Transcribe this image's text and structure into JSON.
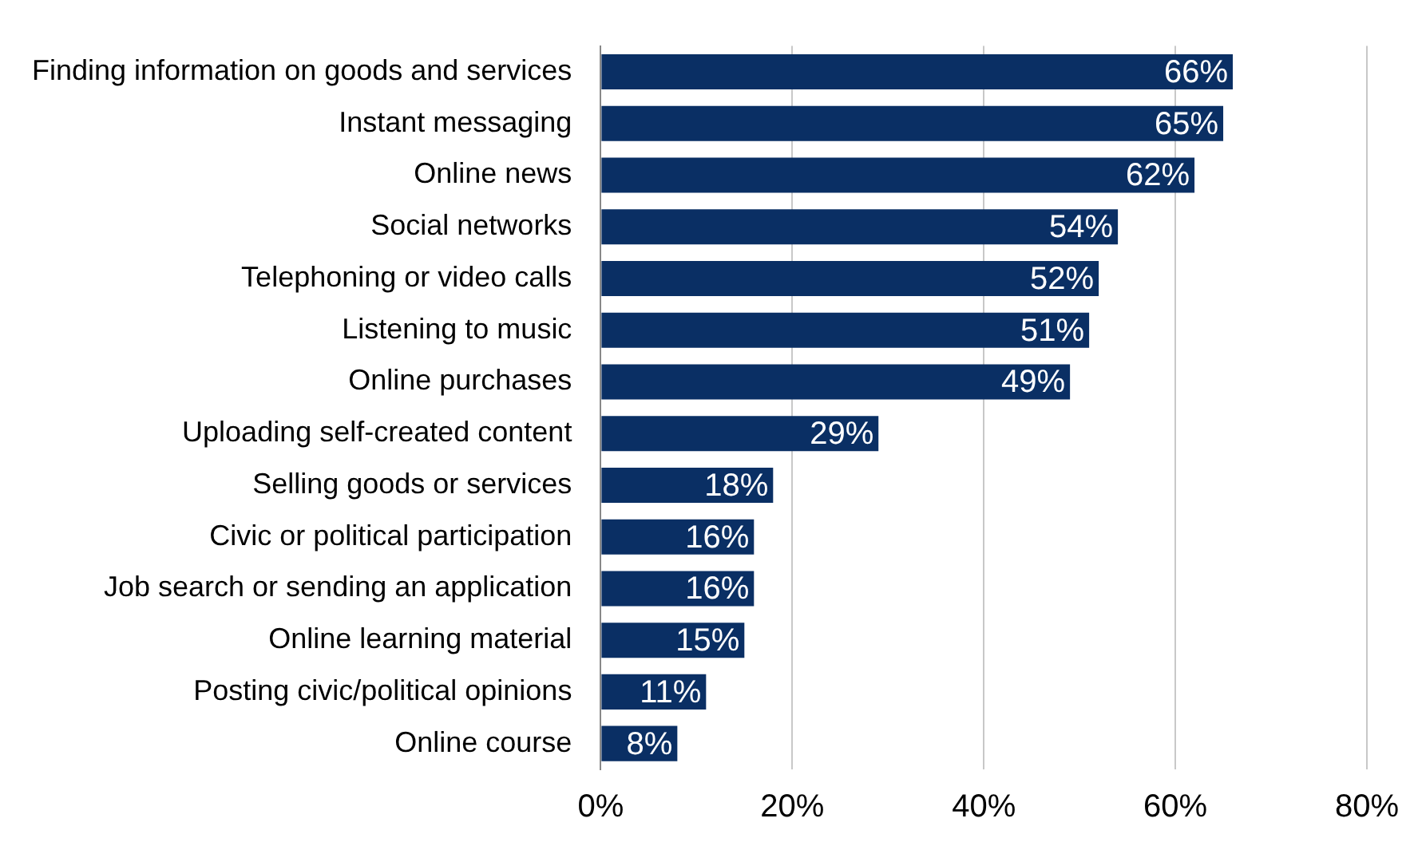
{
  "chart_data": {
    "type": "bar",
    "orientation": "horizontal",
    "categories": [
      "Finding information on goods and services",
      "Instant messaging",
      "Online news",
      "Social networks",
      "Telephoning or video calls",
      "Listening to music",
      "Online purchases",
      "Uploading self-created content",
      "Selling goods or services",
      "Civic or political participation",
      "Job search or sending an application",
      "Online learning material",
      "Posting civic/political opinions",
      "Online course"
    ],
    "values": [
      66,
      65,
      62,
      54,
      52,
      51,
      49,
      29,
      18,
      16,
      16,
      15,
      11,
      8
    ],
    "value_labels": [
      "66%",
      "65%",
      "62%",
      "54%",
      "52%",
      "51%",
      "49%",
      "29%",
      "18%",
      "16%",
      "16%",
      "15%",
      "11%",
      "8%"
    ],
    "color": "#0a2f64",
    "xlim": [
      0,
      80
    ],
    "xticks": [
      {
        "value": 0,
        "label": "0%"
      },
      {
        "value": 20,
        "label": "20%"
      },
      {
        "value": 40,
        "label": "40%"
      },
      {
        "value": 60,
        "label": "60%"
      },
      {
        "value": 80,
        "label": "80%"
      }
    ],
    "grid": "x",
    "legend": false
  }
}
